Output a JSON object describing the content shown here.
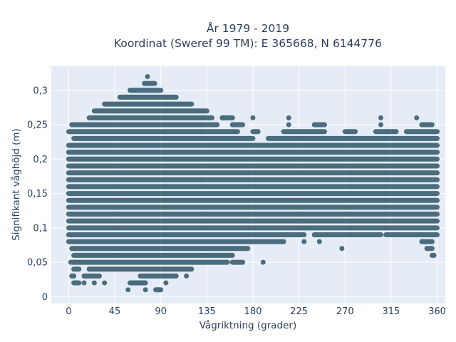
{
  "chart_data": {
    "type": "scatter",
    "title_lines": [
      "År 1979 - 2019",
      "Koordinat (Sweref 99 TM): E 365668, N 6144776"
    ],
    "xlabel": "Vågriktning (grader)",
    "ylabel": "Signifikant våghöjd (m)",
    "xlim": [
      -17,
      368
    ],
    "ylim": [
      -0.01,
      0.335
    ],
    "x_ticks": [
      0,
      45,
      90,
      135,
      180,
      225,
      270,
      315,
      360
    ],
    "y_ticks": [
      0,
      0.05,
      0.1,
      0.15,
      0.2,
      0.25,
      0.3
    ],
    "x_tick_labels": [
      "0",
      "45",
      "90",
      "135",
      "180",
      "225",
      "270",
      "315",
      "360"
    ],
    "y_tick_labels": [
      "0",
      "0,05",
      "0,1",
      "0,15",
      "0,2",
      "0,25",
      "0,3"
    ],
    "grid": true,
    "marker_color": "#2f5669",
    "background_color": "#e5ecf6",
    "y_step": 0.01,
    "x_resolution_deg": 1,
    "envelope": [
      {
        "y": 0.01,
        "x_ranges": [
          [
            58,
            58
          ],
          [
            75,
            75
          ],
          [
            85,
            90
          ]
        ]
      },
      {
        "y": 0.02,
        "x_ranges": [
          [
            5,
            10
          ],
          [
            15,
            15
          ],
          [
            25,
            25
          ],
          [
            35,
            35
          ],
          [
            60,
            75
          ],
          [
            95,
            95
          ]
        ]
      },
      {
        "y": 0.03,
        "x_ranges": [
          [
            3,
            5
          ],
          [
            15,
            30
          ],
          [
            70,
            105
          ],
          [
            115,
            115
          ]
        ]
      },
      {
        "y": 0.04,
        "x_ranges": [
          [
            5,
            10
          ],
          [
            20,
            120
          ]
        ]
      },
      {
        "y": 0.05,
        "x_ranges": [
          [
            2,
            155
          ],
          [
            160,
            170
          ],
          [
            190,
            190
          ]
        ]
      },
      {
        "y": 0.06,
        "x_ranges": [
          [
            5,
            160
          ],
          [
            355,
            357
          ]
        ]
      },
      {
        "y": 0.07,
        "x_ranges": [
          [
            3,
            175
          ],
          [
            267,
            267
          ],
          [
            350,
            355
          ]
        ]
      },
      {
        "y": 0.08,
        "x_ranges": [
          [
            0,
            210
          ],
          [
            230,
            230
          ],
          [
            245,
            245
          ],
          [
            345,
            355
          ]
        ]
      },
      {
        "y": 0.09,
        "x_ranges": [
          [
            0,
            230
          ],
          [
            240,
            305
          ],
          [
            310,
            360
          ]
        ]
      },
      {
        "y": 0.1,
        "x_ranges": [
          [
            0,
            360
          ]
        ]
      },
      {
        "y": 0.11,
        "x_ranges": [
          [
            0,
            360
          ]
        ]
      },
      {
        "y": 0.12,
        "x_ranges": [
          [
            0,
            360
          ]
        ]
      },
      {
        "y": 0.13,
        "x_ranges": [
          [
            0,
            360
          ]
        ]
      },
      {
        "y": 0.14,
        "x_ranges": [
          [
            0,
            360
          ]
        ]
      },
      {
        "y": 0.15,
        "x_ranges": [
          [
            0,
            360
          ]
        ]
      },
      {
        "y": 0.16,
        "x_ranges": [
          [
            0,
            360
          ]
        ]
      },
      {
        "y": 0.17,
        "x_ranges": [
          [
            0,
            360
          ]
        ]
      },
      {
        "y": 0.18,
        "x_ranges": [
          [
            0,
            360
          ]
        ]
      },
      {
        "y": 0.19,
        "x_ranges": [
          [
            0,
            360
          ]
        ]
      },
      {
        "y": 0.2,
        "x_ranges": [
          [
            0,
            360
          ]
        ]
      },
      {
        "y": 0.21,
        "x_ranges": [
          [
            0,
            360
          ]
        ]
      },
      {
        "y": 0.22,
        "x_ranges": [
          [
            0,
            360
          ]
        ]
      },
      {
        "y": 0.23,
        "x_ranges": [
          [
            5,
            180
          ],
          [
            195,
            360
          ]
        ]
      },
      {
        "y": 0.24,
        "x_ranges": [
          [
            0,
            165
          ],
          [
            180,
            185
          ],
          [
            210,
            250
          ],
          [
            270,
            280
          ],
          [
            300,
            320
          ],
          [
            330,
            360
          ]
        ]
      },
      {
        "y": 0.25,
        "x_ranges": [
          [
            3,
            145
          ],
          [
            160,
            170
          ],
          [
            215,
            215
          ],
          [
            240,
            250
          ],
          [
            305,
            305
          ],
          [
            345,
            355
          ]
        ]
      },
      {
        "y": 0.26,
        "x_ranges": [
          [
            20,
            140
          ],
          [
            150,
            160
          ],
          [
            180,
            180
          ],
          [
            215,
            215
          ],
          [
            305,
            305
          ],
          [
            340,
            340
          ]
        ]
      },
      {
        "y": 0.27,
        "x_ranges": [
          [
            25,
            135
          ]
        ]
      },
      {
        "y": 0.28,
        "x_ranges": [
          [
            35,
            120
          ]
        ]
      },
      {
        "y": 0.29,
        "x_ranges": [
          [
            50,
            105
          ]
        ]
      },
      {
        "y": 0.3,
        "x_ranges": [
          [
            60,
            90
          ]
        ]
      },
      {
        "y": 0.31,
        "x_ranges": [
          [
            74,
            84
          ]
        ]
      },
      {
        "y": 0.32,
        "x_ranges": [
          [
            77,
            77
          ]
        ]
      }
    ]
  }
}
